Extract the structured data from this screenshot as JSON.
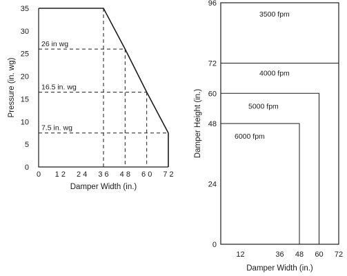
{
  "chart_data": [
    {
      "type": "line",
      "title": "",
      "xlabel": "Damper Width (in.)",
      "ylabel": "Pressure (in. wg)",
      "xlim": [
        0,
        72
      ],
      "ylim": [
        0,
        35
      ],
      "x_ticks": [
        0,
        12,
        24,
        36,
        48,
        60,
        72
      ],
      "y_ticks": [
        0,
        5,
        10,
        15,
        20,
        25,
        30,
        35
      ],
      "x_tick_labels": [
        "0",
        "1 2",
        "2 4",
        "3 6",
        "4 8",
        "6 0",
        "7 2"
      ],
      "y_tick_labels": [
        "0",
        "5",
        "10",
        "15",
        "20",
        "25",
        "30",
        "35"
      ],
      "x": [
        0,
        36,
        48,
        60,
        72,
        72
      ],
      "y": [
        35,
        35,
        26,
        16.5,
        7.5,
        0
      ],
      "annotations": [
        {
          "text": "26 in  wg",
          "y": 26,
          "x_end": 48
        },
        {
          "text": "16.5 in. wg",
          "y": 16.5,
          "x_end": 60
        },
        {
          "text": "7.5 in.  wg",
          "y": 7.5,
          "x_end": 72
        }
      ],
      "grid": false
    },
    {
      "type": "area",
      "title": "",
      "xlabel": "Damper Width (in.)",
      "ylabel": "Damper Height (in.)",
      "xlim": [
        0,
        72
      ],
      "ylim": [
        0,
        96
      ],
      "x_ticks": [
        12,
        36,
        48,
        60,
        72
      ],
      "y_ticks": [
        0,
        24,
        48,
        60,
        72,
        96
      ],
      "x_tick_labels": [
        "12",
        "36",
        "48",
        "60",
        "72"
      ],
      "y_tick_labels": [
        "0",
        "24",
        "48",
        "60",
        "72",
        "96"
      ],
      "regions": [
        {
          "label": "3500 fpm",
          "width": 72,
          "height": 96
        },
        {
          "label": "4000 fpm",
          "width": 72,
          "height": 72
        },
        {
          "label": "5000 fpm",
          "width": 60,
          "height": 60
        },
        {
          "label": "6000 fpm",
          "width": 48,
          "height": 48
        }
      ],
      "grid": false
    }
  ]
}
